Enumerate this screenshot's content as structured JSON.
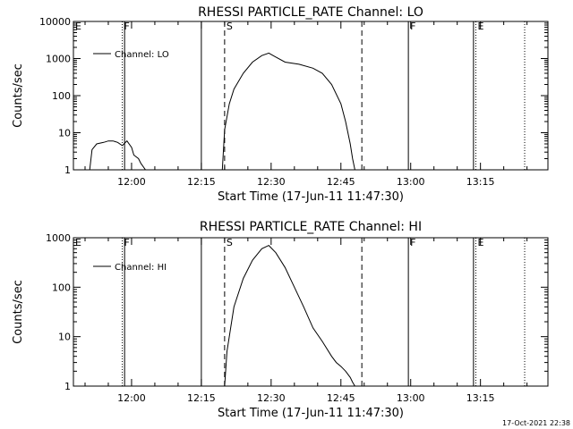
{
  "chart_data": [
    {
      "type": "line",
      "title": "RHESSI PARTICLE_RATE Channel: LO",
      "xlabel": "Start Time (17-Jun-11 11:47:30)",
      "ylabel": "Counts/sec",
      "yscale": "log",
      "ylim": [
        1,
        10000
      ],
      "xlim": [
        "11:47:30",
        "13:29:30"
      ],
      "x_ticks": [
        "12:00",
        "12:15",
        "12:30",
        "12:45",
        "13:00",
        "13:15"
      ],
      "y_ticks": [
        "1",
        "10",
        "100",
        "1000",
        "10000"
      ],
      "legend": "top-left",
      "series": [
        {
          "name": "Channel: LO",
          "x": [
            "11:51:00",
            "11:51:30",
            "11:52:30",
            "11:54:00",
            "11:55:00",
            "11:56:00",
            "11:57:00",
            "11:58:00",
            "11:59:00",
            "12:00:00",
            "12:00:30",
            "12:01:30",
            "12:02:00",
            "12:03:00",
            "12:19:30",
            "12:20:00",
            "12:21:00",
            "12:22:00",
            "12:24:00",
            "12:26:00",
            "12:28:00",
            "12:29:30",
            "12:31:00",
            "12:33:00",
            "12:36:00",
            "12:39:00",
            "12:41:00",
            "12:43:00",
            "12:45:00",
            "12:46:00",
            "12:47:00",
            "12:47:30",
            "12:48:00"
          ],
          "values": [
            1,
            3.5,
            5,
            5.5,
            6,
            6,
            5.5,
            4.5,
            6,
            4,
            2.5,
            2,
            1.5,
            1,
            1,
            12,
            60,
            150,
            400,
            800,
            1200,
            1400,
            1100,
            800,
            700,
            550,
            400,
            200,
            60,
            20,
            5,
            2,
            1
          ]
        }
      ],
      "markers": [
        {
          "label": "E",
          "time": "11:47:30",
          "style": "solid"
        },
        {
          "label": "F",
          "time": "11:58:00",
          "style": "dotted"
        },
        {
          "label": "",
          "time": "11:58:30",
          "style": "solid"
        },
        {
          "label": "",
          "time": "12:15:00",
          "style": "solid"
        },
        {
          "label": "S",
          "time": "12:20:00",
          "style": "dashed"
        },
        {
          "label": "",
          "time": "12:49:30",
          "style": "dashed"
        },
        {
          "label": "F",
          "time": "12:59:30",
          "style": "solid"
        },
        {
          "label": "",
          "time": "13:13:30",
          "style": "solid"
        },
        {
          "label": "E",
          "time": "13:14:00",
          "style": "dotted"
        },
        {
          "label": "",
          "time": "13:24:30",
          "style": "dotted"
        }
      ]
    },
    {
      "type": "line",
      "title": "RHESSI PARTICLE_RATE Channel: HI",
      "xlabel": "Start Time (17-Jun-11 11:47:30)",
      "ylabel": "Counts/sec",
      "yscale": "log",
      "ylim": [
        1,
        1000
      ],
      "xlim": [
        "11:47:30",
        "13:29:30"
      ],
      "x_ticks": [
        "12:00",
        "12:15",
        "12:30",
        "12:45",
        "13:00",
        "13:15"
      ],
      "y_ticks": [
        "1",
        "10",
        "100",
        "1000"
      ],
      "legend": "top-left",
      "series": [
        {
          "name": "Channel: HI",
          "x": [
            "12:20:00",
            "12:20:30",
            "12:22:00",
            "12:24:00",
            "12:26:00",
            "12:28:00",
            "12:29:30",
            "12:31:00",
            "12:33:00",
            "12:35:00",
            "12:37:00",
            "12:39:00",
            "12:41:00",
            "12:43:00",
            "12:44:00",
            "12:45:00",
            "12:46:00",
            "12:47:00",
            "12:47:30",
            "12:48:00"
          ],
          "values": [
            1,
            5,
            40,
            150,
            350,
            600,
            700,
            500,
            250,
            100,
            40,
            15,
            8,
            4,
            3,
            2.5,
            2,
            1.5,
            1.2,
            1
          ]
        }
      ],
      "markers": [
        {
          "label": "E",
          "time": "11:47:30",
          "style": "solid"
        },
        {
          "label": "F",
          "time": "11:58:00",
          "style": "dotted"
        },
        {
          "label": "",
          "time": "11:58:30",
          "style": "solid"
        },
        {
          "label": "",
          "time": "12:15:00",
          "style": "solid"
        },
        {
          "label": "S",
          "time": "12:20:00",
          "style": "dashed"
        },
        {
          "label": "",
          "time": "12:49:30",
          "style": "dashed"
        },
        {
          "label": "F",
          "time": "12:59:30",
          "style": "solid"
        },
        {
          "label": "",
          "time": "13:13:30",
          "style": "solid"
        },
        {
          "label": "E",
          "time": "13:14:00",
          "style": "dotted"
        },
        {
          "label": "",
          "time": "13:24:30",
          "style": "dotted"
        }
      ]
    }
  ],
  "footer_timestamp": "17-Oct-2021 22:38"
}
